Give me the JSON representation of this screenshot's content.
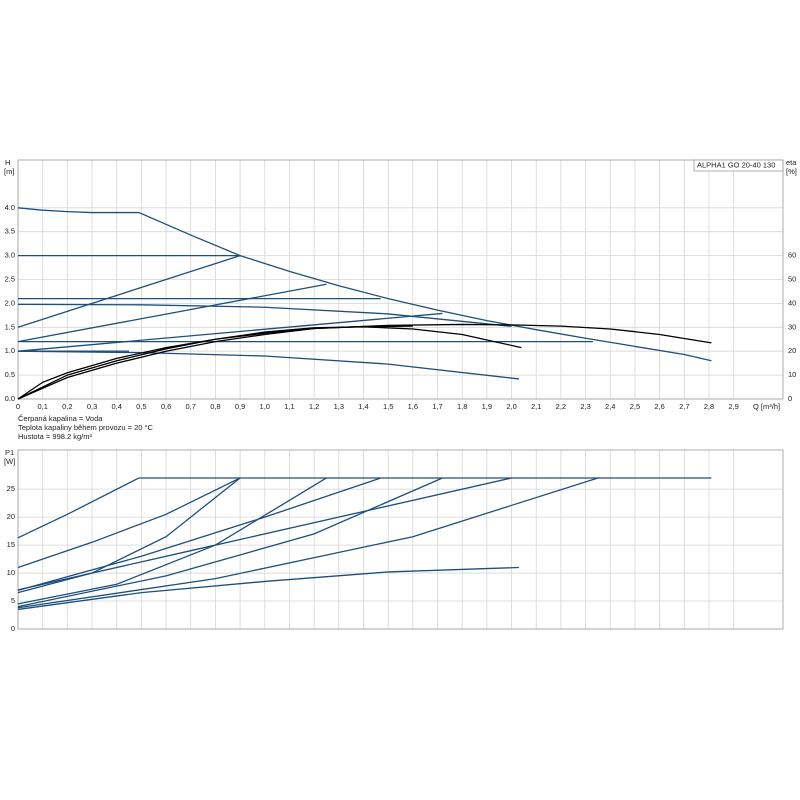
{
  "chart_data": [
    {
      "type": "line",
      "title": "ALPHA1 GO 20-40 130",
      "y_label": "H",
      "y_unit": "[m]",
      "y2_label": "eta",
      "y2_unit": "[%]",
      "x_label": "Q [m³/h]",
      "annotations": [
        "Čerpaná kapalina = Voda",
        "Teplota kapaliny během provozu = 20 °C",
        "Hustota = 998.2 kg/m³"
      ],
      "grid": true,
      "show_xtick_labels": true,
      "xlim": [
        0,
        3.1
      ],
      "xticks": [
        0,
        {
          "value": 0.1,
          "label": "0,1"
        },
        {
          "value": 0.2,
          "label": "0,2"
        },
        {
          "value": 0.3,
          "label": "0,3"
        },
        {
          "value": 0.4,
          "label": "0,4"
        },
        {
          "value": 0.5,
          "label": "0,5"
        },
        {
          "value": 0.6,
          "label": "0,6"
        },
        {
          "value": 0.7,
          "label": "0,7"
        },
        {
          "value": 0.8,
          "label": "0,8"
        },
        {
          "value": 0.9,
          "label": "0,9"
        },
        {
          "value": 1.0,
          "label": "1,0"
        },
        {
          "value": 1.1,
          "label": "1,1"
        },
        {
          "value": 1.2,
          "label": "1,2"
        },
        {
          "value": 1.3,
          "label": "1,3"
        },
        {
          "value": 1.4,
          "label": "1,4"
        },
        {
          "value": 1.5,
          "label": "1,5"
        },
        {
          "value": 1.6,
          "label": "1,6"
        },
        {
          "value": 1.7,
          "label": "1,7"
        },
        {
          "value": 1.8,
          "label": "1,8"
        },
        {
          "value": 1.9,
          "label": "1,9"
        },
        {
          "value": 2.0,
          "label": "2,0"
        },
        {
          "value": 2.1,
          "label": "2,1"
        },
        {
          "value": 2.2,
          "label": "2,2"
        },
        {
          "value": 2.3,
          "label": "2,3"
        },
        {
          "value": 2.4,
          "label": "2,4"
        },
        {
          "value": 2.5,
          "label": "2,5"
        },
        {
          "value": 2.6,
          "label": "2,6"
        },
        {
          "value": 2.7,
          "label": "2,7"
        },
        {
          "value": 2.8,
          "label": "2,8"
        },
        {
          "value": 2.9,
          "label": "2,9"
        }
      ],
      "ylim": [
        0,
        5
      ],
      "yticks": [
        {
          "value": 0,
          "label": "0.0"
        },
        0.5,
        {
          "value": 1,
          "label": "1.0"
        },
        1.5,
        {
          "value": 2,
          "label": "2.0"
        },
        2.5,
        {
          "value": 3,
          "label": "3.0"
        },
        3.5,
        {
          "value": 4,
          "label": "4.0"
        }
      ],
      "y2lim": [
        0,
        100
      ],
      "y2ticks": [
        0,
        10,
        20,
        30,
        40,
        50,
        60
      ],
      "series": [
        {
          "color": "#1d4f7c",
          "x": [
            0,
            0.1,
            0.2,
            0.3,
            0.49,
            0.7,
            0.9,
            1.1,
            1.3,
            1.5,
            1.7,
            1.9,
            2.1,
            2.3,
            2.5,
            2.7,
            2.81
          ],
          "values": [
            4.0,
            3.95,
            3.92,
            3.9,
            3.9,
            3.43,
            3.0,
            2.67,
            2.37,
            2.1,
            1.86,
            1.64,
            1.45,
            1.27,
            1.1,
            0.93,
            0.8
          ]
        },
        {
          "color": "#1d4f7c",
          "x": [
            0,
            0.9
          ],
          "values": [
            3.0,
            3.0
          ]
        },
        {
          "color": "#1d4f7c",
          "x": [
            0,
            1.47
          ],
          "values": [
            2.1,
            2.1
          ]
        },
        {
          "color": "#1d4f7c",
          "x": [
            0,
            2.33
          ],
          "values": [
            1.2,
            1.2
          ]
        },
        {
          "color": "#1d4f7c",
          "x": [
            0,
            0.45
          ],
          "values": [
            1.0,
            1.0
          ]
        },
        {
          "color": "#1d4f7c",
          "x": [
            0,
            0.9
          ],
          "values": [
            1.5,
            3.0
          ]
        },
        {
          "color": "#1d4f7c",
          "x": [
            0,
            1.25
          ],
          "values": [
            1.2,
            2.4
          ]
        },
        {
          "color": "#1d4f7c",
          "x": [
            0,
            1.72
          ],
          "values": [
            1.0,
            1.79
          ]
        },
        {
          "color": "#1d4f7c",
          "x": [
            0,
            0.5,
            1.0,
            1.5,
            2.0
          ],
          "values": [
            1.98,
            1.97,
            1.92,
            1.78,
            1.52
          ]
        },
        {
          "color": "#1d4f7c",
          "x": [
            0,
            0.5,
            1.0,
            1.5,
            2.03
          ],
          "values": [
            1.0,
            0.97,
            0.9,
            0.73,
            0.42
          ]
        },
        {
          "color": "#000000",
          "axis": "y2",
          "x": [
            0,
            0.1,
            0.2,
            0.4,
            0.6,
            0.8,
            1.0,
            1.2,
            1.5,
            1.8,
            2.0,
            2.2,
            2.4,
            2.6,
            2.81
          ],
          "values": [
            0,
            7,
            11,
            17,
            21.5,
            25,
            27.5,
            29.5,
            30.8,
            31.2,
            31,
            30.5,
            29.3,
            27,
            23.5
          ]
        },
        {
          "color": "#000000",
          "axis": "y2",
          "x": [
            0,
            0.2,
            0.4,
            0.6,
            0.8,
            1.0,
            1.2,
            1.4,
            1.6,
            1.8,
            2.04
          ],
          "values": [
            0,
            10,
            16,
            21,
            25,
            28,
            29.8,
            30.2,
            29.3,
            27,
            21.5
          ]
        },
        {
          "color": "#000000",
          "axis": "y2",
          "x": [
            0,
            0.2,
            0.4,
            0.6,
            0.8,
            1.0,
            1.2,
            1.4,
            1.6
          ],
          "values": [
            0,
            9,
            15,
            20,
            24,
            27,
            29.5,
            30.3,
            30.5
          ]
        }
      ]
    },
    {
      "type": "line",
      "y_label": "P1",
      "y_unit": "[W]",
      "grid": true,
      "show_xtick_labels": false,
      "xlim": [
        0,
        3.1
      ],
      "xticks": [
        0,
        0.1,
        0.2,
        0.3,
        0.4,
        0.5,
        0.6,
        0.7,
        0.8,
        0.9,
        1.0,
        1.1,
        1.2,
        1.3,
        1.4,
        1.5,
        1.6,
        1.7,
        1.8,
        1.9,
        2.0,
        2.1,
        2.2,
        2.3,
        2.4,
        2.5,
        2.6,
        2.7,
        2.8,
        2.9
      ],
      "ylim": [
        0,
        32
      ],
      "yticks": [
        0,
        5,
        10,
        15,
        20,
        25
      ],
      "series": [
        {
          "color": "#1d4f7c",
          "x": [
            0.49,
            2.81
          ],
          "values": [
            27,
            27
          ]
        },
        {
          "color": "#1d4f7c",
          "x": [
            0,
            0.2,
            0.49
          ],
          "values": [
            16.3,
            20.5,
            27
          ]
        },
        {
          "color": "#1d4f7c",
          "x": [
            0,
            0.3,
            0.6,
            0.9
          ],
          "values": [
            11,
            15.5,
            20.5,
            27
          ]
        },
        {
          "color": "#1d4f7c",
          "x": [
            0,
            0.3,
            0.6,
            0.9
          ],
          "values": [
            6.5,
            10,
            16.5,
            27
          ]
        },
        {
          "color": "#1d4f7c",
          "x": [
            0,
            0.4,
            0.8,
            1.25
          ],
          "values": [
            4.5,
            8,
            15,
            27
          ]
        },
        {
          "color": "#1d4f7c",
          "x": [
            0,
            0.5,
            1.0,
            1.47
          ],
          "values": [
            6.9,
            13,
            20,
            27
          ]
        },
        {
          "color": "#1d4f7c",
          "x": [
            0,
            0.6,
            1.2,
            1.72
          ],
          "values": [
            4,
            9.5,
            17,
            27
          ]
        },
        {
          "color": "#1d4f7c",
          "x": [
            0,
            0.7,
            1.4,
            2.0
          ],
          "values": [
            7,
            14,
            21,
            27
          ]
        },
        {
          "color": "#1d4f7c",
          "x": [
            0,
            0.8,
            1.6,
            2.35
          ],
          "values": [
            3.8,
            9,
            16.5,
            27
          ]
        },
        {
          "color": "#1d4f7c",
          "x": [
            0,
            0.5,
            1.0,
            1.5,
            2.03
          ],
          "values": [
            3.5,
            6.5,
            8.5,
            10.2,
            11
          ]
        }
      ]
    }
  ]
}
